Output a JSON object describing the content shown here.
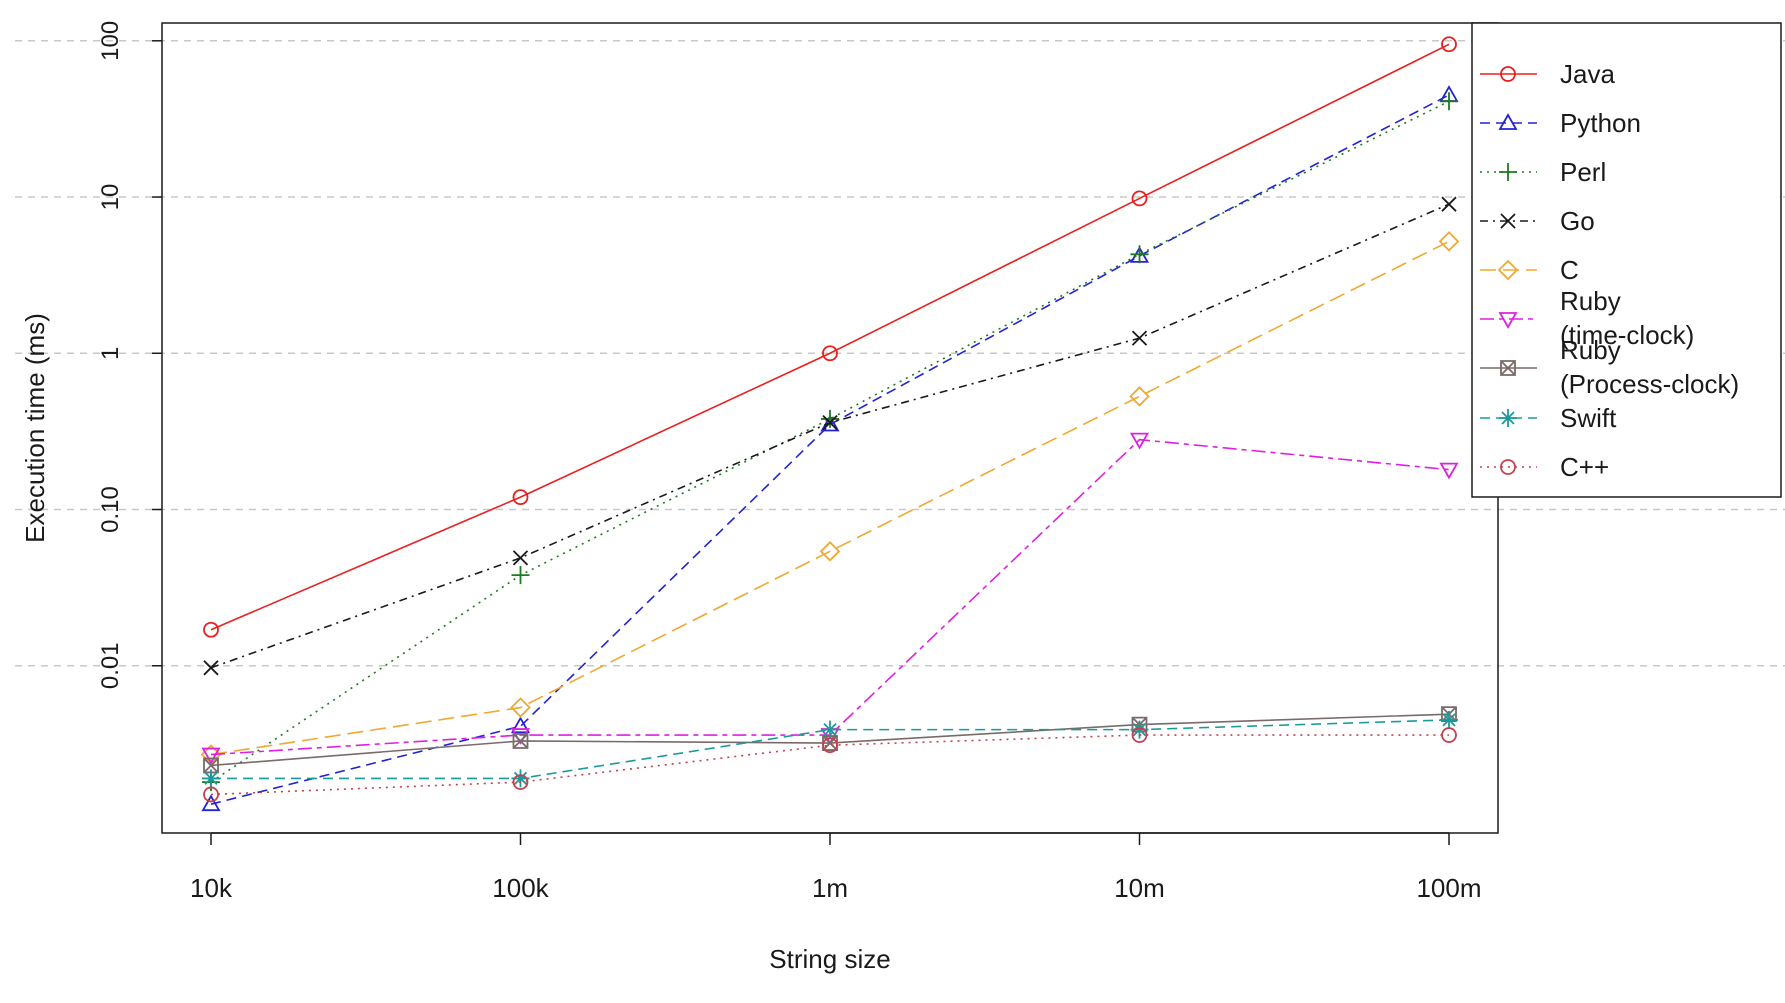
{
  "chart_data": {
    "type": "line",
    "xlabel": "String size",
    "ylabel": "Execution time (ms)",
    "x_tick_labels": [
      "10k",
      "100k",
      "1m",
      "10m",
      "100m"
    ],
    "y_scale": "log",
    "y_ticks": [
      0.01,
      0.1,
      1,
      10,
      100
    ],
    "y_tick_labels": [
      "0.01",
      "0.10",
      "1",
      "10",
      "100"
    ],
    "ylim": [
      0.00085,
      130
    ],
    "grid": "horizontal dashed at y ticks",
    "legend_position": "top-right",
    "series": [
      {
        "name": "Java",
        "color": "#e8201f",
        "dash": "solid",
        "marker": "circle",
        "values": [
          0.017,
          0.12,
          1.0,
          9.8,
          95
        ]
      },
      {
        "name": "Python",
        "color": "#2323d4",
        "dash": "dashed",
        "marker": "triangle-up",
        "values": [
          0.0013,
          0.0041,
          0.35,
          4.2,
          45
        ]
      },
      {
        "name": "Perl",
        "color": "#1f7a1f",
        "dash": "dotted",
        "marker": "plus",
        "values": [
          0.0018,
          0.038,
          0.38,
          4.3,
          41
        ]
      },
      {
        "name": "Go",
        "color": "#1a1a1a",
        "dash": "dashdot",
        "marker": "cross",
        "values": [
          0.0097,
          0.049,
          0.36,
          1.25,
          9.0
        ]
      },
      {
        "name": "C",
        "color": "#f0a830",
        "dash": "longdash",
        "marker": "diamond",
        "values": [
          0.0027,
          0.0054,
          0.054,
          0.53,
          5.2
        ]
      },
      {
        "name": "Ruby (time-clock)",
        "legend_lines": [
          "Ruby",
          "(time-clock)"
        ],
        "color": "#e020e0",
        "dash": "twodash",
        "marker": "triangle-down",
        "values": [
          0.0027,
          0.0036,
          0.0036,
          0.28,
          0.18
        ]
      },
      {
        "name": "Ruby (Process-clock)",
        "legend_lines": [
          "Ruby",
          "(Process-clock)"
        ],
        "color": "#7a6a6a",
        "dash": "solid",
        "marker": "boxed-x",
        "values": [
          0.0023,
          0.0033,
          0.0032,
          0.0042,
          0.0049
        ]
      },
      {
        "name": "Swift",
        "color": "#1a9a9a",
        "dash": "dashed",
        "marker": "asterisk",
        "values": [
          0.0019,
          0.0019,
          0.0039,
          0.0039,
          0.0045
        ]
      },
      {
        "name": "C++",
        "color": "#c84050",
        "dash": "dotted",
        "marker": "circle",
        "values": [
          0.0015,
          0.0018,
          0.0031,
          0.0036,
          0.0036
        ]
      }
    ]
  }
}
